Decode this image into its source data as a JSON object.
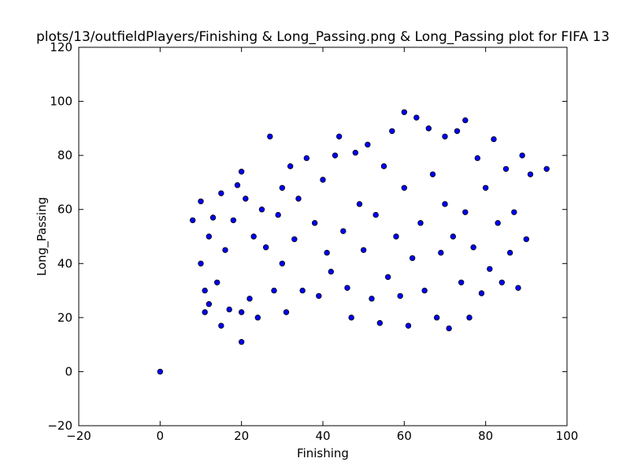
{
  "chart_data": {
    "type": "scatter",
    "title": "plots/13/outfieldPlayers/Finishing & Long_Passing.png & Long_Passing plot for FIFA 13",
    "xlabel": "Finishing",
    "ylabel": "Long_Passing",
    "xlim": [
      -20,
      100
    ],
    "ylim": [
      -20,
      120
    ],
    "xticks": [
      "−20",
      "0",
      "20",
      "40",
      "60",
      "80",
      "100"
    ],
    "yticks": [
      "−20",
      "0",
      "20",
      "40",
      "60",
      "80",
      "100",
      "120"
    ],
    "grid": false,
    "point_color": "#0000ff",
    "points": [
      [
        0,
        0
      ],
      [
        8,
        56
      ],
      [
        10,
        40
      ],
      [
        10,
        63
      ],
      [
        11,
        22
      ],
      [
        11,
        30
      ],
      [
        12,
        25
      ],
      [
        12,
        50
      ],
      [
        13,
        57
      ],
      [
        14,
        33
      ],
      [
        15,
        17
      ],
      [
        15,
        66
      ],
      [
        16,
        45
      ],
      [
        17,
        23
      ],
      [
        18,
        56
      ],
      [
        19,
        69
      ],
      [
        20,
        11
      ],
      [
        20,
        22
      ],
      [
        20,
        74
      ],
      [
        21,
        64
      ],
      [
        22,
        27
      ],
      [
        23,
        50
      ],
      [
        24,
        20
      ],
      [
        25,
        60
      ],
      [
        26,
        46
      ],
      [
        27,
        87
      ],
      [
        28,
        30
      ],
      [
        29,
        58
      ],
      [
        30,
        40
      ],
      [
        30,
        68
      ],
      [
        31,
        22
      ],
      [
        32,
        76
      ],
      [
        33,
        49
      ],
      [
        34,
        64
      ],
      [
        35,
        30
      ],
      [
        36,
        79
      ],
      [
        38,
        55
      ],
      [
        39,
        28
      ],
      [
        40,
        71
      ],
      [
        41,
        44
      ],
      [
        42,
        37
      ],
      [
        43,
        80
      ],
      [
        44,
        87
      ],
      [
        45,
        52
      ],
      [
        46,
        31
      ],
      [
        47,
        20
      ],
      [
        48,
        81
      ],
      [
        49,
        62
      ],
      [
        50,
        45
      ],
      [
        51,
        84
      ],
      [
        52,
        27
      ],
      [
        53,
        58
      ],
      [
        54,
        18
      ],
      [
        55,
        76
      ],
      [
        56,
        35
      ],
      [
        57,
        89
      ],
      [
        58,
        50
      ],
      [
        59,
        28
      ],
      [
        60,
        96
      ],
      [
        60,
        68
      ],
      [
        61,
        17
      ],
      [
        62,
        42
      ],
      [
        63,
        94
      ],
      [
        64,
        55
      ],
      [
        65,
        30
      ],
      [
        66,
        90
      ],
      [
        67,
        73
      ],
      [
        68,
        20
      ],
      [
        69,
        44
      ],
      [
        70,
        87
      ],
      [
        70,
        62
      ],
      [
        71,
        16
      ],
      [
        72,
        50
      ],
      [
        73,
        89
      ],
      [
        74,
        33
      ],
      [
        75,
        93
      ],
      [
        75,
        59
      ],
      [
        76,
        20
      ],
      [
        77,
        46
      ],
      [
        78,
        79
      ],
      [
        79,
        29
      ],
      [
        80,
        68
      ],
      [
        81,
        38
      ],
      [
        82,
        86
      ],
      [
        83,
        55
      ],
      [
        84,
        33
      ],
      [
        85,
        75
      ],
      [
        86,
        44
      ],
      [
        87,
        59
      ],
      [
        88,
        31
      ],
      [
        89,
        80
      ],
      [
        90,
        49
      ],
      [
        91,
        73
      ],
      [
        95,
        75
      ]
    ]
  }
}
